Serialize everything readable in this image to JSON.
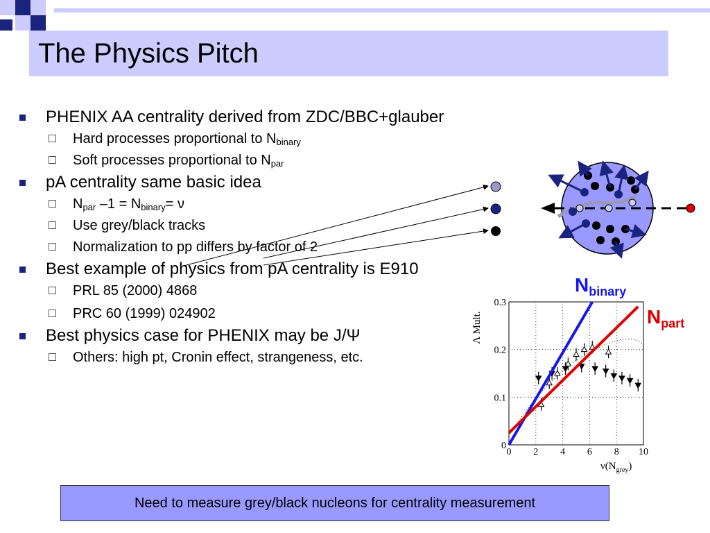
{
  "slide": {
    "title": "The Physics Pitch",
    "bullets": [
      {
        "text": "PHENIX AA centrality derived from ZDC/BBC+glauber"
      },
      {
        "sub1_pre": "Hard processes proportional to N",
        "sub1_sub": "binary"
      },
      {
        "sub2_pre": "Soft processes proportional to N",
        "sub2_sub": "par"
      },
      {
        "text": "pA centrality same basic idea"
      },
      {
        "n1": "N",
        "n1_sub": "par",
        "mid": " –1 = N",
        "n2_sub": "binary",
        "end": "= ν"
      },
      {
        "text": "Use grey/black tracks"
      },
      {
        "text": "Normalization to pp differs by factor of 2"
      },
      {
        "text": "Best example of physics from pA centrality is E910"
      },
      {
        "text": "PRL 85 (2000) 4868"
      },
      {
        "text": "PRC 60 (1999) 024902"
      },
      {
        "text": "Best physics case for PHENIX may be J/Ψ"
      },
      {
        "text": "Others: high pt, Cronin effect, strangeness, etc."
      }
    ],
    "footer_box": "Need to measure grey/black nucleons for centrality measurement"
  },
  "colors": {
    "title_band": "#ccccff",
    "deco_dark": "#1a237e",
    "box": "#9999ff",
    "nbinary": "#1515ee",
    "npart": "#e00000"
  },
  "labels": {
    "nbinary_main": "N",
    "nbinary_sub": "binary",
    "npart_main": "N",
    "npart_sub": "part"
  },
  "chart_data": {
    "type": "scatter",
    "ylabel": "Λ Mult.",
    "xlabel": "ν(N",
    "xlabel_sub": "grey",
    "xlabel_end": ")",
    "xlim": [
      0,
      10
    ],
    "ylim": [
      0,
      0.3
    ],
    "x_ticks": [
      "0",
      "2",
      "4",
      "6",
      "8",
      "10"
    ],
    "y_ticks": [
      "0",
      "0.1",
      "0.2",
      "0.3"
    ],
    "grid": true,
    "series": [
      {
        "marker": "triangle-up",
        "x": [
          2.4,
          3.0,
          3.6,
          4.4,
          5.0,
          5.6,
          6.2,
          7.4
        ],
        "y": [
          0.085,
          0.13,
          0.15,
          0.17,
          0.19,
          0.2,
          0.205,
          0.195
        ]
      },
      {
        "marker": "triangle-down",
        "x": [
          2.2,
          3.2,
          4.2,
          5.4,
          6.4,
          7.2,
          7.8,
          8.4,
          9.0,
          9.6
        ],
        "y": [
          0.14,
          0.15,
          0.16,
          0.165,
          0.16,
          0.155,
          0.145,
          0.14,
          0.135,
          0.125
        ]
      }
    ],
    "lines": [
      {
        "name": "N binary",
        "color": "#1515ee",
        "x": [
          0,
          6.2
        ],
        "y": [
          0,
          0.3
        ]
      },
      {
        "name": "N part",
        "color": "#e00000",
        "x": [
          0,
          9.6
        ],
        "y": [
          0.025,
          0.29
        ]
      }
    ]
  }
}
